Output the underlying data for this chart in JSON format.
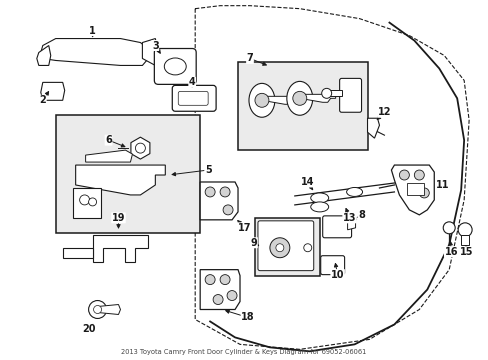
{
  "bg_color": "#ffffff",
  "line_color": "#1a1a1a",
  "box_fill": "#ebebeb",
  "fig_width": 4.89,
  "fig_height": 3.6,
  "dpi": 100,
  "title": "2013 Toyota Camry Front Door Cylinder & Keys Diagram for 69052-06061"
}
